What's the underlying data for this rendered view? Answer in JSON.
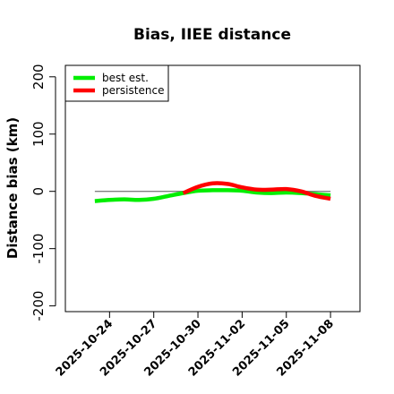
{
  "chart_data": {
    "type": "line",
    "title": "Bias, IIEE distance",
    "xlabel": "",
    "ylabel": "Distance bias (km)",
    "ylim": [
      -210,
      220
    ],
    "yticks": [
      -200,
      -100,
      0,
      100,
      200
    ],
    "xlim": [
      "2025-10-21",
      "2025-11-10"
    ],
    "xticks": [
      "2025-10-24",
      "2025-10-27",
      "2025-10-30",
      "2025-11-02",
      "2025-11-05",
      "2025-11-08"
    ],
    "reference_line": {
      "y": 0,
      "from": "2025-10-23",
      "to": "2025-11-08",
      "color": "#808080"
    },
    "legend_position": "top-left",
    "grid": false,
    "x": [
      "2025-10-23",
      "2025-10-24",
      "2025-10-25",
      "2025-10-26",
      "2025-10-27",
      "2025-10-28",
      "2025-10-29",
      "2025-10-30",
      "2025-10-31",
      "2025-11-01",
      "2025-11-02",
      "2025-11-03",
      "2025-11-04",
      "2025-11-05",
      "2025-11-06",
      "2025-11-07",
      "2025-11-08"
    ],
    "series": [
      {
        "name": "best est.",
        "color": "#00ee00",
        "values": [
          -17,
          -15,
          -14,
          -15,
          -13,
          -8,
          -3,
          1,
          2,
          2,
          1,
          -2,
          -3,
          -2,
          -3,
          -5,
          -7
        ]
      },
      {
        "name": "persistence",
        "color": "#ff0000",
        "values": [
          null,
          null,
          null,
          null,
          null,
          null,
          -3,
          8,
          14,
          13,
          7,
          3,
          3,
          4,
          0,
          -8,
          -13
        ]
      }
    ]
  }
}
